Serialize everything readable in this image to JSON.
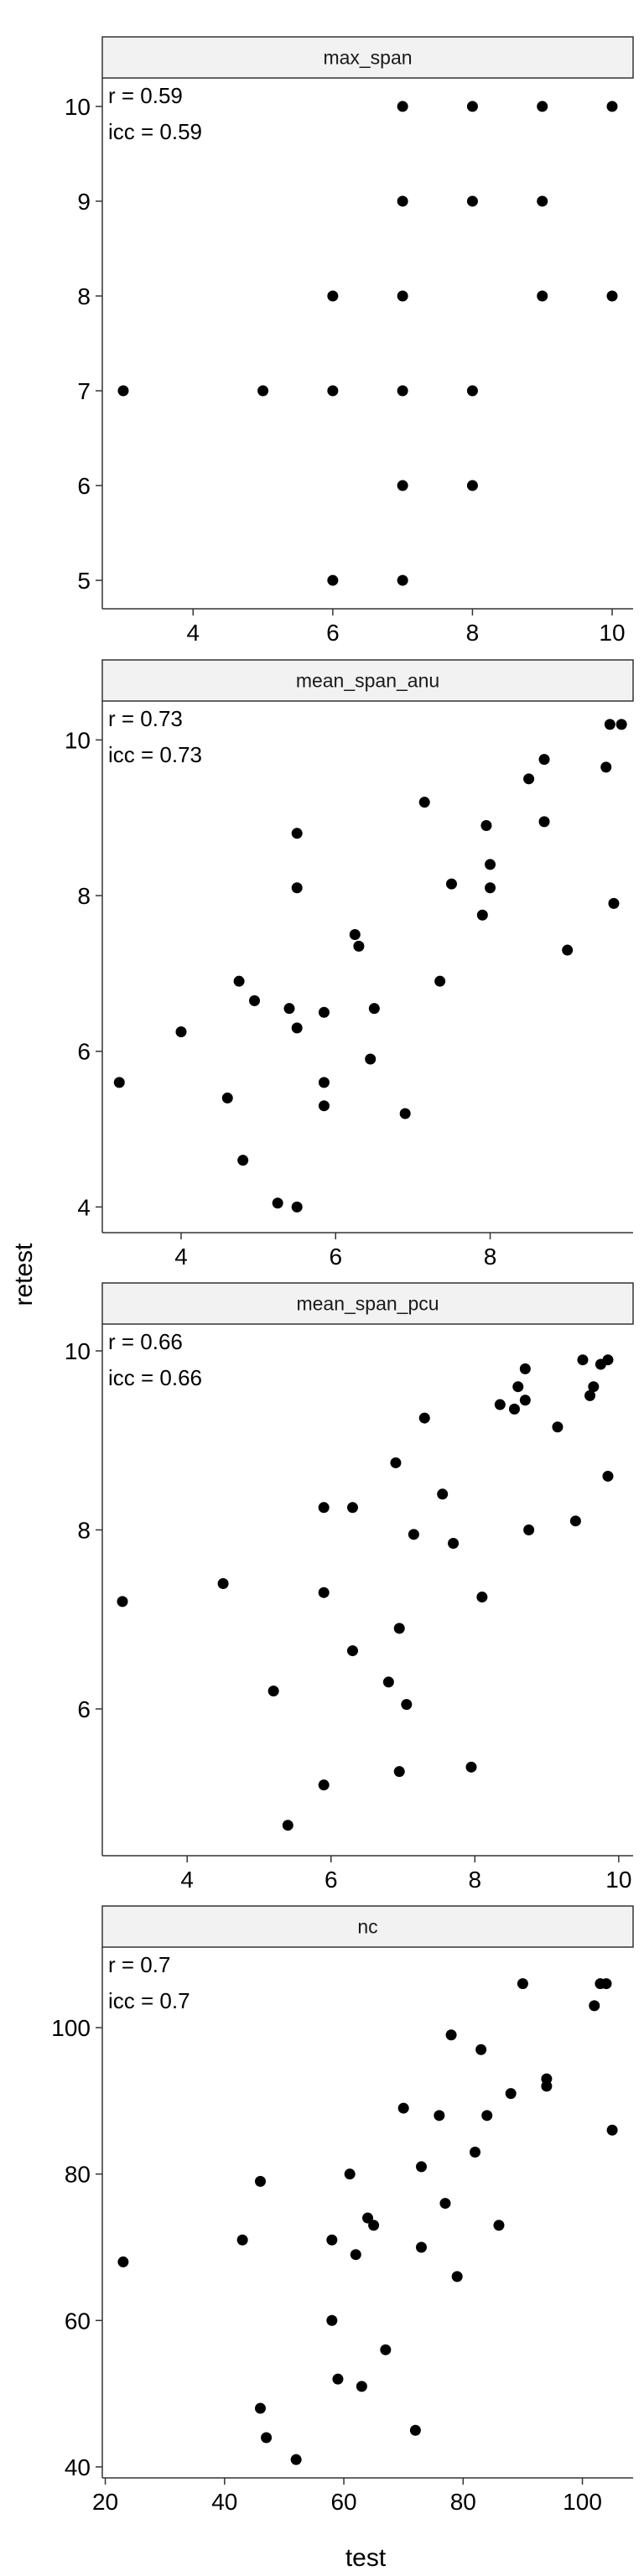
{
  "chart_data": {
    "type": "scatter",
    "xlabel": "test",
    "ylabel": "retest",
    "colors": {
      "point": "#000000",
      "strip_fill": "#f2f2f2",
      "strip_border": "#333333",
      "axis": "#333333"
    },
    "panels": [
      {
        "strip": "max_span",
        "annotations": [
          "r = 0.59",
          "icc = 0.59"
        ],
        "xlim": [
          2.7,
          10.3
        ],
        "ylim": [
          4.7,
          10.3
        ],
        "xticks": [
          4,
          6,
          8,
          10
        ],
        "yticks": [
          5,
          6,
          7,
          8,
          9,
          10
        ],
        "points": [
          [
            3,
            7
          ],
          [
            5,
            7
          ],
          [
            6,
            5
          ],
          [
            6,
            7
          ],
          [
            6,
            8
          ],
          [
            7,
            5
          ],
          [
            7,
            6
          ],
          [
            7,
            7
          ],
          [
            7,
            8
          ],
          [
            7,
            9
          ],
          [
            7,
            10
          ],
          [
            8,
            6
          ],
          [
            8,
            7
          ],
          [
            8,
            9
          ],
          [
            8,
            10
          ],
          [
            9,
            8
          ],
          [
            9,
            9
          ],
          [
            9,
            10
          ],
          [
            10,
            8
          ],
          [
            10,
            10
          ]
        ]
      },
      {
        "strip": "mean_span_anu",
        "annotations": [
          "r = 0.73",
          "icc = 0.73"
        ],
        "xlim": [
          2.98,
          9.85
        ],
        "ylim": [
          3.67,
          10.5
        ],
        "xticks": [
          4,
          6,
          8
        ],
        "yticks": [
          4,
          6,
          8,
          10
        ],
        "points": [
          [
            3.2,
            5.6
          ],
          [
            4.0,
            6.25
          ],
          [
            4.6,
            5.4
          ],
          [
            4.75,
            6.9
          ],
          [
            4.8,
            4.6
          ],
          [
            4.95,
            6.65
          ],
          [
            5.25,
            4.05
          ],
          [
            5.4,
            6.55
          ],
          [
            5.5,
            4.0
          ],
          [
            5.5,
            6.3
          ],
          [
            5.5,
            8.1
          ],
          [
            5.5,
            8.8
          ],
          [
            5.85,
            5.3
          ],
          [
            5.85,
            5.6
          ],
          [
            5.85,
            6.5
          ],
          [
            6.25,
            7.5
          ],
          [
            6.3,
            7.35
          ],
          [
            6.45,
            5.9
          ],
          [
            6.5,
            6.55
          ],
          [
            6.9,
            5.2
          ],
          [
            7.15,
            9.2
          ],
          [
            7.35,
            6.9
          ],
          [
            7.5,
            8.15
          ],
          [
            7.9,
            7.75
          ],
          [
            7.95,
            8.9
          ],
          [
            8.0,
            8.1
          ],
          [
            8.0,
            8.4
          ],
          [
            8.5,
            9.5
          ],
          [
            8.7,
            8.95
          ],
          [
            8.7,
            9.75
          ],
          [
            9.0,
            7.3
          ],
          [
            9.5,
            9.65
          ],
          [
            9.55,
            10.2
          ],
          [
            9.6,
            7.9
          ],
          [
            9.7,
            10.2
          ]
        ]
      },
      {
        "strip": "mean_span_pcu",
        "annotations": [
          "r = 0.66",
          "icc = 0.66"
        ],
        "xlim": [
          2.82,
          10.2
        ],
        "ylim": [
          4.36,
          10.3
        ],
        "xticks": [
          4,
          6,
          8,
          10
        ],
        "yticks": [
          6,
          8,
          10
        ],
        "points": [
          [
            3.1,
            7.2
          ],
          [
            4.5,
            7.4
          ],
          [
            5.2,
            6.2
          ],
          [
            5.4,
            4.7
          ],
          [
            5.9,
            5.15
          ],
          [
            5.9,
            7.3
          ],
          [
            5.9,
            8.25
          ],
          [
            6.3,
            6.65
          ],
          [
            6.3,
            8.25
          ],
          [
            6.8,
            6.3
          ],
          [
            6.9,
            8.75
          ],
          [
            6.95,
            5.3
          ],
          [
            6.95,
            6.9
          ],
          [
            7.05,
            6.05
          ],
          [
            7.15,
            7.95
          ],
          [
            7.3,
            9.25
          ],
          [
            7.55,
            8.4
          ],
          [
            7.7,
            7.85
          ],
          [
            7.95,
            5.35
          ],
          [
            8.1,
            7.25
          ],
          [
            8.35,
            9.4
          ],
          [
            8.55,
            9.35
          ],
          [
            8.6,
            9.6
          ],
          [
            8.7,
            9.45
          ],
          [
            8.7,
            9.8
          ],
          [
            8.75,
            8.0
          ],
          [
            9.15,
            9.15
          ],
          [
            9.4,
            8.1
          ],
          [
            9.5,
            9.9
          ],
          [
            9.6,
            9.5
          ],
          [
            9.65,
            9.6
          ],
          [
            9.75,
            9.85
          ],
          [
            9.85,
            8.6
          ],
          [
            9.85,
            9.9
          ]
        ]
      },
      {
        "strip": "nc",
        "annotations": [
          "r = 0.7",
          "icc = 0.7"
        ],
        "xlim": [
          19.5,
          108.5
        ],
        "ylim": [
          38.5,
          111
        ],
        "xticks": [
          20,
          40,
          60,
          80,
          100
        ],
        "yticks": [
          40,
          60,
          80,
          100
        ],
        "points": [
          [
            23,
            68
          ],
          [
            43,
            71
          ],
          [
            46,
            48
          ],
          [
            46,
            79
          ],
          [
            47,
            44
          ],
          [
            52,
            41
          ],
          [
            58,
            60
          ],
          [
            58,
            71
          ],
          [
            59,
            52
          ],
          [
            61,
            80
          ],
          [
            62,
            69
          ],
          [
            63,
            51
          ],
          [
            64,
            74
          ],
          [
            65,
            73
          ],
          [
            67,
            56
          ],
          [
            70,
            89
          ],
          [
            72,
            45
          ],
          [
            73,
            70
          ],
          [
            73,
            81
          ],
          [
            76,
            88
          ],
          [
            77,
            76
          ],
          [
            78,
            99
          ],
          [
            79,
            66
          ],
          [
            82,
            83
          ],
          [
            83,
            97
          ],
          [
            84,
            88
          ],
          [
            86,
            73
          ],
          [
            88,
            91
          ],
          [
            90,
            106
          ],
          [
            94,
            92
          ],
          [
            94,
            93
          ],
          [
            102,
            103
          ],
          [
            103,
            106
          ],
          [
            104,
            106
          ],
          [
            105,
            86
          ]
        ]
      }
    ]
  }
}
